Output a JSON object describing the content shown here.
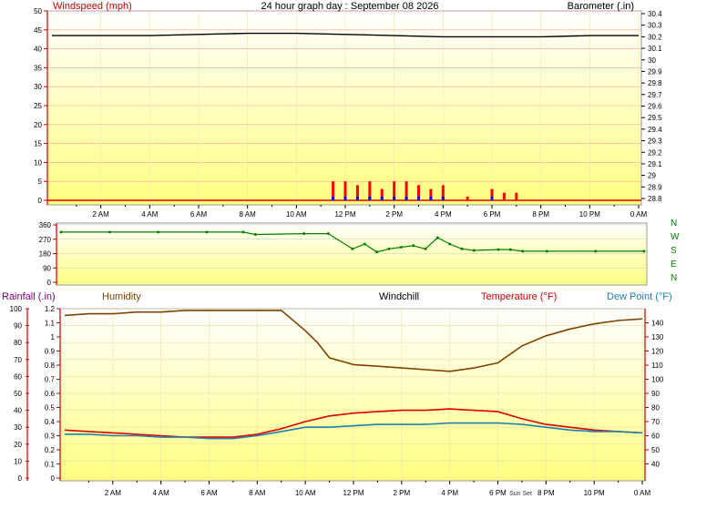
{
  "chart_data": [
    {
      "type": "line",
      "title": "24 hour graph day : September 08 2026",
      "ylabel_left": "Windspeed (mph)",
      "ylabel_right": "Barometer (.in)",
      "ylim_left": [
        0,
        50
      ],
      "ylim_right": [
        28.8,
        30.4
      ],
      "left_ticks": [
        0,
        5,
        10,
        15,
        20,
        25,
        30,
        35,
        40,
        45,
        50
      ],
      "right_ticks": [
        28.8,
        28.9,
        29,
        29.1,
        29.2,
        29.3,
        29.4,
        29.5,
        29.6,
        29.7,
        29.8,
        29.9,
        30,
        30.1,
        30.2,
        30.3,
        30.4
      ],
      "x_ticks": [
        "2 AM",
        "4 AM",
        "6 AM",
        "8 AM",
        "10 AM",
        "12 PM",
        "2 PM",
        "4 PM",
        "6 PM",
        "8 PM",
        "10 PM",
        "0 AM"
      ],
      "series": [
        {
          "name": "Barometer",
          "color": "#000000",
          "x": [
            0,
            2,
            4,
            6,
            8,
            10,
            12,
            14,
            16,
            18,
            20,
            22,
            24
          ],
          "values": [
            30.21,
            30.21,
            30.21,
            30.22,
            30.23,
            30.23,
            30.22,
            30.21,
            30.2,
            30.2,
            30.2,
            30.21,
            30.21
          ]
        },
        {
          "name": "Gust",
          "color": "#ff0000",
          "x": [
            11.5,
            12,
            12.5,
            13,
            13.5,
            14,
            14.5,
            15,
            15.5,
            16,
            17,
            18,
            18.5,
            19
          ],
          "values": [
            5,
            5,
            4,
            5,
            3,
            5,
            5,
            4,
            3,
            4,
            1,
            3,
            2,
            2
          ]
        },
        {
          "name": "Wind",
          "color": "#0000ff",
          "x": [
            11.5,
            12,
            12.5,
            13,
            13.5,
            14,
            14.5,
            15,
            15.5,
            16,
            17,
            18,
            18.5,
            19
          ],
          "values": [
            1,
            1,
            1,
            1,
            1,
            1,
            1,
            1,
            1,
            1,
            0,
            1,
            0,
            0
          ]
        }
      ]
    },
    {
      "type": "scatter",
      "title": "",
      "ylim": [
        0,
        360
      ],
      "left_ticks": [
        0,
        90,
        180,
        270,
        360
      ],
      "compass_labels": [
        "N",
        "W",
        "S",
        "E",
        "N"
      ],
      "series": [
        {
          "name": "Wind Direction",
          "color": "#008000",
          "x": [
            0,
            2,
            4,
            6,
            7.5,
            8,
            10,
            11,
            12,
            12.5,
            13,
            13.5,
            14,
            14.5,
            15,
            15.5,
            16,
            16.5,
            17,
            18,
            18.5,
            19,
            20,
            22,
            24
          ],
          "values": [
            315,
            315,
            315,
            315,
            315,
            300,
            305,
            305,
            210,
            240,
            190,
            210,
            220,
            230,
            210,
            280,
            240,
            210,
            200,
            205,
            205,
            195,
            195,
            195,
            195
          ]
        }
      ]
    },
    {
      "type": "line",
      "title": "",
      "labels": {
        "rainfall": "Rainfall (.in)",
        "humidity": "Humidity",
        "windchill": "Windchill",
        "temperature": "Temperature (°F)",
        "dewpoint": "Dew Point (°F)"
      },
      "ylim_humidity": [
        0,
        100
      ],
      "ylim_rain": [
        0,
        1.2
      ],
      "ylim_temp": [
        30,
        150
      ],
      "humidity_ticks": [
        0,
        10,
        20,
        30,
        40,
        50,
        60,
        70,
        80,
        90,
        100
      ],
      "rain_ticks": [
        0,
        0.1,
        0.2,
        0.3,
        0.4,
        0.5,
        0.6,
        0.7,
        0.8,
        0.9,
        1,
        1.1,
        1.2
      ],
      "temp_ticks": [
        40,
        50,
        60,
        70,
        80,
        90,
        100,
        110,
        120,
        130,
        140
      ],
      "x_ticks": [
        "2 AM",
        "4 AM",
        "6 AM",
        "8 AM",
        "10 AM",
        "12 PM",
        "2 PM",
        "4 PM",
        "6 PM",
        "8 PM",
        "10 PM",
        "0 AM"
      ],
      "sunset_label": "Sun Set",
      "series": [
        {
          "name": "Humidity",
          "color": "#804000",
          "x": [
            0,
            1,
            2,
            3,
            4,
            5,
            6,
            7,
            8,
            9,
            10,
            10.5,
            11,
            12,
            13,
            14,
            15,
            16,
            17,
            18,
            19,
            20,
            21,
            22,
            23,
            24
          ],
          "values": [
            96,
            97,
            97,
            98,
            98,
            99,
            99,
            99,
            99,
            99,
            87,
            80,
            71,
            67,
            66,
            65,
            64,
            63,
            65,
            68,
            78,
            84,
            88,
            91,
            93,
            94
          ]
        },
        {
          "name": "Temperature",
          "color": "#e00000",
          "x": [
            0,
            1,
            2,
            3,
            4,
            5,
            6,
            7,
            8,
            9,
            10,
            11,
            12,
            13,
            14,
            15,
            16,
            17,
            18,
            19,
            20,
            21,
            22,
            23,
            24
          ],
          "values": [
            64,
            63,
            62,
            61,
            60,
            59,
            59,
            59,
            61,
            65,
            70,
            74,
            76,
            77,
            78,
            78,
            79,
            78,
            77,
            72,
            68,
            66,
            64,
            63,
            62
          ]
        },
        {
          "name": "Dew Point",
          "color": "#2080b0",
          "x": [
            0,
            1,
            2,
            3,
            4,
            5,
            6,
            7,
            8,
            9,
            10,
            11,
            12,
            13,
            14,
            15,
            16,
            17,
            18,
            19,
            20,
            21,
            22,
            23,
            24
          ],
          "values": [
            61,
            61,
            60,
            60,
            59,
            59,
            58,
            58,
            60,
            63,
            66,
            66,
            67,
            68,
            68,
            68,
            69,
            69,
            69,
            68,
            66,
            64,
            63,
            63,
            62
          ]
        }
      ]
    }
  ]
}
